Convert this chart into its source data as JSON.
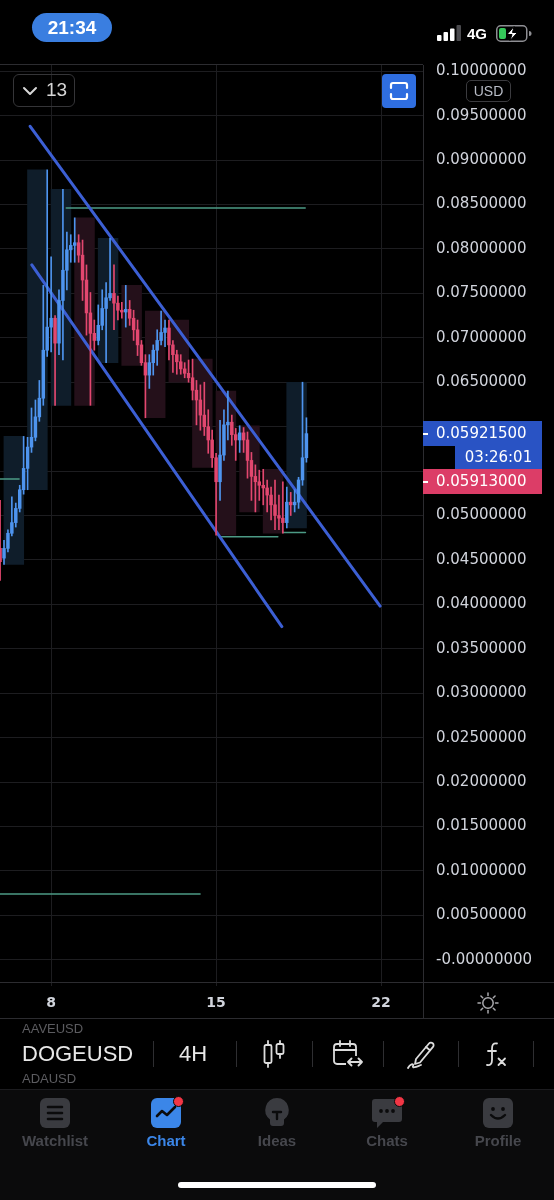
{
  "chart_data": {
    "type": "candlestick",
    "title": "DOGEUSD",
    "subtitle": "4H",
    "x": [
      5.833,
      6,
      6.167,
      6.333,
      6.5,
      6.667,
      6.833,
      7,
      7.167,
      7.333,
      7.5,
      7.667,
      7.833,
      8,
      8.167,
      8.333,
      8.5,
      8.667,
      8.833,
      9,
      9.167,
      9.333,
      9.5,
      9.667,
      9.833,
      10,
      10.167,
      10.333,
      10.5,
      10.667,
      10.833,
      11,
      11.167,
      11.333,
      11.5,
      11.667,
      11.833,
      12,
      12.167,
      12.333,
      12.5,
      12.667,
      12.833,
      13,
      13.167,
      13.333,
      13.5,
      13.667,
      13.833,
      14,
      14.167,
      14.333,
      14.5,
      14.667,
      14.833,
      15,
      15.167,
      15.333,
      15.5,
      15.667,
      15.833,
      16,
      16.167,
      16.333,
      16.5,
      16.667,
      16.833,
      17,
      17.167,
      17.333,
      17.5,
      17.667,
      17.833,
      18,
      18.167,
      18.333,
      18.5,
      18.667,
      18.833
    ],
    "ohlc": [
      [
        0.0463,
        0.0517,
        0.0427,
        0.0448
      ],
      [
        0.0452,
        0.0472,
        0.0445,
        0.0463
      ],
      [
        0.0463,
        0.0484,
        0.0459,
        0.048
      ],
      [
        0.048,
        0.0521,
        0.0477,
        0.0492
      ],
      [
        0.0492,
        0.0514,
        0.0487,
        0.0508
      ],
      [
        0.0508,
        0.0534,
        0.0504,
        0.0529
      ],
      [
        0.0529,
        0.0589,
        0.0524,
        0.0553
      ],
      [
        0.0553,
        0.0588,
        0.0529,
        0.0577
      ],
      [
        0.0577,
        0.0621,
        0.0571,
        0.0588
      ],
      [
        0.0588,
        0.063,
        0.0584,
        0.0611
      ],
      [
        0.0611,
        0.0652,
        0.0606,
        0.0632
      ],
      [
        0.0632,
        0.0759,
        0.0624,
        0.0686
      ],
      [
        0.0686,
        0.0889,
        0.0679,
        0.0712
      ],
      [
        0.0712,
        0.0791,
        0.0684,
        0.0722
      ],
      [
        0.0722,
        0.0725,
        0.0624,
        0.0694
      ],
      [
        0.0694,
        0.0754,
        0.0681,
        0.0742
      ],
      [
        0.0742,
        0.0867,
        0.0675,
        0.0776
      ],
      [
        0.0776,
        0.0819,
        0.0754,
        0.0799
      ],
      [
        0.0799,
        0.0816,
        0.0785,
        0.0804
      ],
      [
        0.0804,
        0.0835,
        0.0785,
        0.0807
      ],
      [
        0.0807,
        0.0816,
        0.0785,
        0.0793
      ],
      [
        0.0793,
        0.081,
        0.0742,
        0.0765
      ],
      [
        0.0765,
        0.0782,
        0.0703,
        0.0728
      ],
      [
        0.0728,
        0.0751,
        0.0624,
        0.0705
      ],
      [
        0.0705,
        0.072,
        0.0686,
        0.0697
      ],
      [
        0.0697,
        0.0737,
        0.0692,
        0.0714
      ],
      [
        0.0714,
        0.0754,
        0.0709,
        0.0733
      ],
      [
        0.0733,
        0.0762,
        0.0672,
        0.0745
      ],
      [
        0.0745,
        0.0812,
        0.0742,
        0.075
      ],
      [
        0.075,
        0.0782,
        0.0709,
        0.0739
      ],
      [
        0.0739,
        0.0747,
        0.072,
        0.0731
      ],
      [
        0.0731,
        0.074,
        0.0722,
        0.0729
      ],
      [
        0.0729,
        0.0759,
        0.0712,
        0.0732
      ],
      [
        0.0732,
        0.0742,
        0.0714,
        0.0722
      ],
      [
        0.0722,
        0.0731,
        0.0697,
        0.0709
      ],
      [
        0.0709,
        0.072,
        0.068,
        0.0692
      ],
      [
        0.0692,
        0.0697,
        0.0669,
        0.0672
      ],
      [
        0.0672,
        0.0681,
        0.061,
        0.0658
      ],
      [
        0.0658,
        0.0681,
        0.0643,
        0.0672
      ],
      [
        0.0672,
        0.0692,
        0.0658,
        0.0686
      ],
      [
        0.0686,
        0.0709,
        0.0669,
        0.0697
      ],
      [
        0.0697,
        0.073,
        0.0692,
        0.0706
      ],
      [
        0.0706,
        0.072,
        0.069,
        0.0711
      ],
      [
        0.0711,
        0.072,
        0.0675,
        0.0692
      ],
      [
        0.0692,
        0.0697,
        0.0661,
        0.0681
      ],
      [
        0.0681,
        0.0686,
        0.0659,
        0.0673
      ],
      [
        0.0673,
        0.0681,
        0.0659,
        0.0665
      ],
      [
        0.0665,
        0.0672,
        0.0655,
        0.066
      ],
      [
        0.066,
        0.0675,
        0.065,
        0.0655
      ],
      [
        0.0655,
        0.0676,
        0.063,
        0.0641
      ],
      [
        0.0641,
        0.0652,
        0.0602,
        0.063
      ],
      [
        0.063,
        0.0647,
        0.0596,
        0.0613
      ],
      [
        0.0613,
        0.065,
        0.059,
        0.06
      ],
      [
        0.06,
        0.0619,
        0.057,
        0.0585
      ],
      [
        0.0585,
        0.0596,
        0.0554,
        0.0565
      ],
      [
        0.0565,
        0.057,
        0.0478,
        0.0538
      ],
      [
        0.0538,
        0.0607,
        0.0517,
        0.0568
      ],
      [
        0.0568,
        0.0619,
        0.0562,
        0.0602
      ],
      [
        0.0602,
        0.064,
        0.0585,
        0.0605
      ],
      [
        0.0605,
        0.0613,
        0.0579,
        0.0591
      ],
      [
        0.0591,
        0.0598,
        0.0562,
        0.0585
      ],
      [
        0.0585,
        0.0601,
        0.0571,
        0.0593
      ],
      [
        0.0593,
        0.0599,
        0.0571,
        0.0585
      ],
      [
        0.0585,
        0.0594,
        0.0542,
        0.0562
      ],
      [
        0.0562,
        0.0571,
        0.0517,
        0.0544
      ],
      [
        0.0544,
        0.0557,
        0.0504,
        0.0538
      ],
      [
        0.0538,
        0.0551,
        0.0517,
        0.0534
      ],
      [
        0.0534,
        0.0552,
        0.0512,
        0.0531
      ],
      [
        0.0531,
        0.054,
        0.0504,
        0.0523
      ],
      [
        0.0523,
        0.0532,
        0.0495,
        0.0512
      ],
      [
        0.0512,
        0.054,
        0.0484,
        0.05
      ],
      [
        0.05,
        0.0523,
        0.0484,
        0.0497
      ],
      [
        0.0497,
        0.0538,
        0.048,
        0.0492
      ],
      [
        0.0492,
        0.0532,
        0.0486,
        0.0515
      ],
      [
        0.0515,
        0.0526,
        0.05,
        0.0512
      ],
      [
        0.0512,
        0.0529,
        0.0504,
        0.0515
      ],
      [
        0.0515,
        0.0543,
        0.0508,
        0.054
      ],
      [
        0.054,
        0.065,
        0.0534,
        0.0565
      ],
      [
        0.0565,
        0.061,
        0.056,
        0.059215
      ]
    ],
    "colors": [
      "#e2476f",
      "#4e94ee",
      "#4e94ee",
      "#4e94ee",
      "#4e94ee",
      "#4e94ee",
      "#4e94ee",
      "#4e94ee",
      "#4e94ee",
      "#4e94ee",
      "#4e94ee",
      "#4e94ee",
      "#4e94ee",
      "#4e94ee",
      "#e2476f",
      "#4e94ee",
      "#4e94ee",
      "#4e94ee",
      "#4e94ee",
      "#4e94ee",
      "#e2476f",
      "#e2476f",
      "#e2476f",
      "#e2476f",
      "#e2476f",
      "#4e94ee",
      "#4e94ee",
      "#4e94ee",
      "#4e94ee",
      "#e2476f",
      "#e2476f",
      "#e2476f",
      "#4e94ee",
      "#e2476f",
      "#e2476f",
      "#e2476f",
      "#e2476f",
      "#e2476f",
      "#4e94ee",
      "#4e94ee",
      "#4e94ee",
      "#4e94ee",
      "#4e94ee",
      "#e2476f",
      "#e2476f",
      "#e2476f",
      "#e2476f",
      "#e2476f",
      "#e2476f",
      "#e2476f",
      "#e2476f",
      "#e2476f",
      "#e2476f",
      "#e2476f",
      "#e2476f",
      "#e2476f",
      "#4e94ee",
      "#4e94ee",
      "#4e94ee",
      "#e2476f",
      "#e2476f",
      "#4e94ee",
      "#e2476f",
      "#e2476f",
      "#e2476f",
      "#e2476f",
      "#e2476f",
      "#e2476f",
      "#e2476f",
      "#e2476f",
      "#e2476f",
      "#e2476f",
      "#e2476f",
      "#4e94ee",
      "#e2476f",
      "#4e94ee",
      "#4e94ee",
      "#4e94ee",
      "#4e94ee"
    ],
    "series": [
      {
        "type": "bar",
        "x": [
          6.417,
          7.417,
          8.417,
          9.417,
          10.417,
          11.417,
          12.417,
          13.417,
          14.417,
          15.417,
          16.417,
          17.417,
          18.417
        ],
        "base": [
          0.0445,
          0.0529,
          0.0624,
          0.0624,
          0.0672,
          0.0669,
          0.061,
          0.065,
          0.0554,
          0.0478,
          0.0504,
          0.048,
          0.0486
        ],
        "values": [
          0.0144,
          0.036,
          0.0243,
          0.0211,
          0.014,
          0.009,
          0.012,
          0.007,
          0.0122,
          0.0162,
          0.0097,
          0.0072,
          0.0164
        ],
        "colors": [
          "#0f1d2a",
          "#0f1d2a",
          "#0f1d2a",
          "#24101a",
          "#0f1d2a",
          "#24101a",
          "#24101a",
          "#24101a",
          "#24101a",
          "#24101a",
          "#24101a",
          "#24101a",
          "#0f1d2a"
        ]
      },
      {
        "type": "line",
        "x": [
          7.11,
          21.96
        ],
        "values": [
          0.0938,
          0.0398
        ],
        "color": "#3c5fd4"
      },
      {
        "type": "line",
        "x": [
          7.18,
          17.79
        ],
        "values": [
          0.0782,
          0.0375
        ],
        "color": "#3c5fd4"
      },
      {
        "type": "line",
        "x": [
          8.64,
          18.78
        ],
        "values": [
          0.0846,
          0.0846
        ],
        "color": "#4c9a85"
      },
      {
        "type": "line",
        "x": [
          15.17,
          17.62
        ],
        "values": [
          0.0476,
          0.0476
        ],
        "color": "#4c9a85"
      },
      {
        "type": "line",
        "x": [
          17.83,
          18.79
        ],
        "values": [
          0.0481,
          0.0481
        ],
        "color": "#4c9a85"
      },
      {
        "type": "line",
        "x": [
          5.83,
          14.32
        ],
        "values": [
          0.0074,
          0.0074
        ],
        "color": "#4c9a85"
      },
      {
        "type": "line",
        "x": [
          5.83,
          6.64
        ],
        "values": [
          0.0541,
          0.0541
        ],
        "color": "#4c9a85"
      }
    ],
    "xlim": [
      5.83,
      23.78
    ],
    "xticks": [
      8,
      15,
      22
    ],
    "ylim": [
      -0.0025,
      0.1007
    ],
    "yticks": [
      {
        "value": 0.1,
        "label": "0.10000000"
      },
      {
        "value": 0.095,
        "label": "0.09500000"
      },
      {
        "value": 0.09,
        "label": "0.09000000"
      },
      {
        "value": 0.085,
        "label": "0.08500000"
      },
      {
        "value": 0.08,
        "label": "0.08000000"
      },
      {
        "value": 0.075,
        "label": "0.07500000"
      },
      {
        "value": 0.07,
        "label": "0.07000000"
      },
      {
        "value": 0.065,
        "label": "0.06500000"
      },
      {
        "value": 0.06,
        "label": null
      },
      {
        "value": 0.055,
        "label": null
      },
      {
        "value": 0.05,
        "label": "0.05000000"
      },
      {
        "value": 0.045,
        "label": "0.04500000"
      },
      {
        "value": 0.04,
        "label": "0.04000000"
      },
      {
        "value": 0.035,
        "label": "0.03500000"
      },
      {
        "value": 0.03,
        "label": "0.03000000"
      },
      {
        "value": 0.025,
        "label": "0.02500000"
      },
      {
        "value": 0.02,
        "label": "0.02000000"
      },
      {
        "value": 0.015,
        "label": "0.01500000"
      },
      {
        "value": 0.01,
        "label": "0.01000000"
      },
      {
        "value": 0.005,
        "label": "0.00500000"
      },
      {
        "value": 0,
        "label": "-0.00000000"
      }
    ],
    "grid": true,
    "annotations": [
      "21:34",
      "4G",
      "13",
      "USD",
      "0.05921500",
      "03:26:01",
      "0.05913000",
      "AAVEUSD",
      "ADAUSD",
      "Watchlist",
      "Chart",
      "Ideas",
      "Chats",
      "Profile"
    ]
  }
}
